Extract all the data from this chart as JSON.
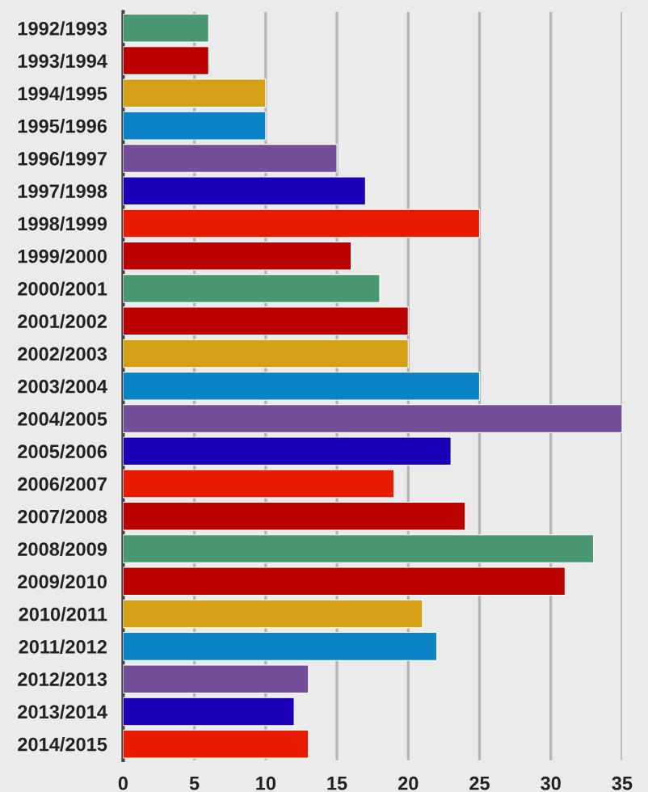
{
  "chart_data": {
    "type": "bar",
    "orientation": "horizontal",
    "categories": [
      "1992/1993",
      "1993/1994",
      "1994/1995",
      "1995/1996",
      "1996/1997",
      "1997/1998",
      "1998/1999",
      "1999/2000",
      "2000/2001",
      "2001/2002",
      "2002/2003",
      "2003/2004",
      "2004/2005",
      "2005/2006",
      "2006/2007",
      "2007/2008",
      "2008/2009",
      "2009/2010",
      "2010/2011",
      "2011/2012",
      "2012/2013",
      "2013/2014",
      "2014/2015"
    ],
    "values": [
      6,
      6,
      10,
      10,
      15,
      17,
      25,
      16,
      18,
      20,
      20,
      25,
      35,
      23,
      19,
      24,
      33,
      31,
      21,
      22,
      13,
      12,
      13
    ],
    "colors": [
      "#4a9870",
      "#bb0000",
      "#d6a016",
      "#0a84c6",
      "#734f9a",
      "#1a00b8",
      "#e81a00",
      "#bb0000",
      "#4a9870",
      "#bb0000",
      "#d6a016",
      "#0a84c6",
      "#734f9a",
      "#1a00b8",
      "#e81a00",
      "#bb0000",
      "#4a9870",
      "#bb0000",
      "#d6a016",
      "#0a84c6",
      "#734f9a",
      "#1a00b8",
      "#e81a00"
    ],
    "xlim": [
      0,
      35
    ],
    "xticks": [
      0,
      5,
      10,
      15,
      20,
      25,
      30,
      35
    ],
    "grid": "x"
  }
}
